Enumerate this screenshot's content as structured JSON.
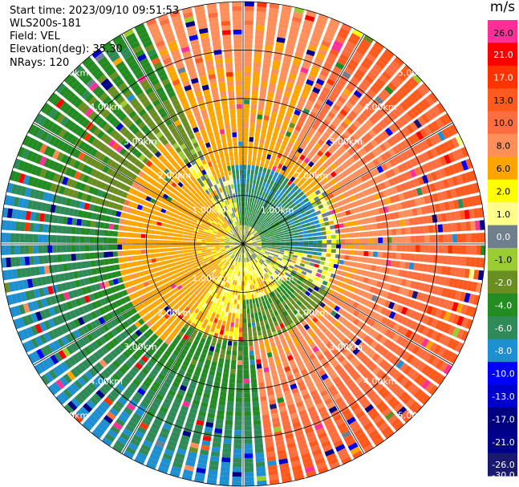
{
  "header": {
    "start_time": "Start time: 2023/09/10 09:51:53",
    "instrument": "WLS200s-181",
    "field": "Field: VEL",
    "elevation": "Elevation(deg): 35.30",
    "nrays": "NRays: 120"
  },
  "colorbar": {
    "unit": "m/s",
    "ticks": [
      "26.0",
      "21.0",
      "17.0",
      "13.0",
      "10.0",
      "8.0",
      "6.0",
      "2.0",
      "1.0",
      "0.0",
      "-1.0",
      "-2.0",
      "-4.0",
      "-6.0",
      "-8.0",
      "-10.0",
      "-13.0",
      "-17.0",
      "-21.0",
      "-26.0",
      "-30.0"
    ],
    "colors": [
      "#ff2f97",
      "#ff0000",
      "#ff3300",
      "#ff5a1e",
      "#ff6e3f",
      "#ff8f5a",
      "#ffa500",
      "#ffff00",
      "#ffff8a",
      "#6f7f8e",
      "#9acd32",
      "#6b8e23",
      "#228b22",
      "#2e8b57",
      "#1e8fd0",
      "#0000ff",
      "#0000cd",
      "#000080",
      "#00008b",
      "#191970"
    ]
  },
  "chart_data": {
    "type": "heatmap",
    "projection": "polar (PPI scan)",
    "field": "VEL",
    "units": "m/s",
    "elevation_deg": 35.3,
    "n_rays": 120,
    "range_rings_km": [
      1.0,
      2.0,
      3.0,
      4.0,
      5.0
    ],
    "range_labels": [
      "1.00km",
      "2.00km",
      "3.00km",
      "4.00km",
      "5.00km"
    ],
    "max_range_km": 5.0,
    "vmin": -30.0,
    "vmax": 26.0,
    "azimuth_lines_deg": [
      0,
      30,
      60,
      90,
      120,
      150,
      180,
      210,
      240,
      270,
      300,
      330
    ],
    "velocity_regions": [
      {
        "sector": "north-east to south-east, outer",
        "value_range": [
          6.0,
          13.0
        ]
      },
      {
        "sector": "north, mid range",
        "value_range": [
          2.0,
          8.0
        ]
      },
      {
        "sector": "west, inner",
        "value_range": [
          1.0,
          6.0
        ]
      },
      {
        "sector": "north-east, inner",
        "value_range": [
          -8.0,
          -2.0
        ]
      },
      {
        "sector": "south-west to south, outer",
        "value_range": [
          -10.0,
          -4.0
        ]
      },
      {
        "sector": "south-east, mid range",
        "value_range": [
          -2.0,
          2.0
        ]
      },
      {
        "sector": "centre",
        "value_range": [
          -1.0,
          1.0
        ]
      }
    ]
  }
}
